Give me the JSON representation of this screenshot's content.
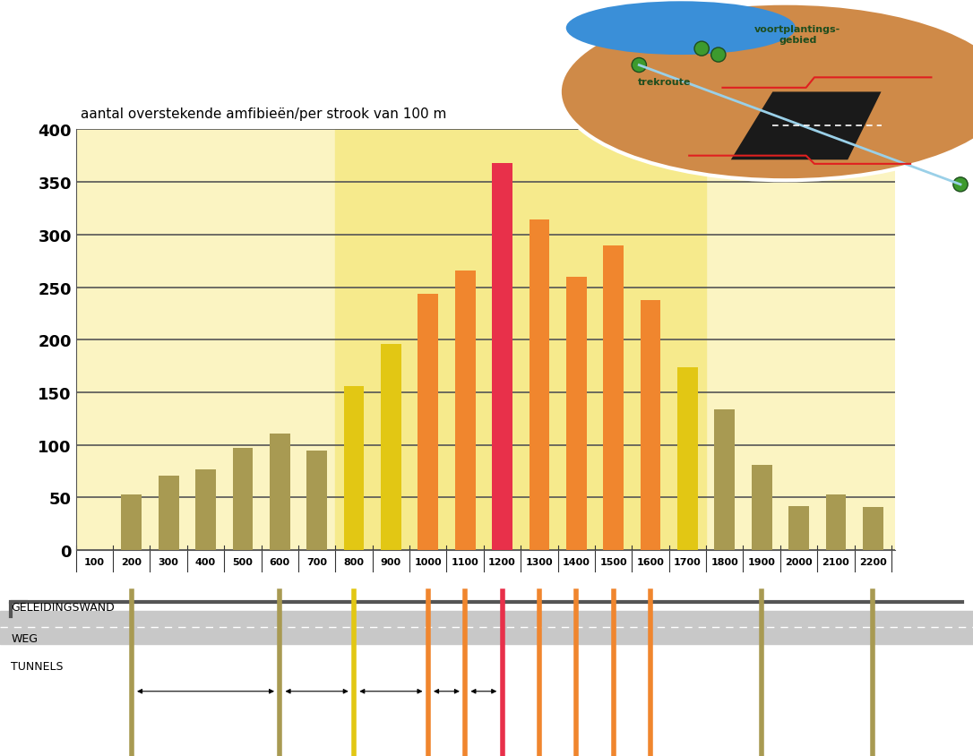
{
  "chart_data": {
    "type": "bar",
    "y_label": "aantal overstekende amfibieën/per strook van 100 m",
    "categories": [
      "100",
      "200",
      "300",
      "400",
      "500",
      "600",
      "700",
      "800",
      "900",
      "1000",
      "1100",
      "1200",
      "1300",
      "1400",
      "1500",
      "1600",
      "1700",
      "1800",
      "1900",
      "2000",
      "2100",
      "2200"
    ],
    "values": [
      null,
      53,
      71,
      77,
      97,
      111,
      95,
      156,
      196,
      244,
      266,
      368,
      314,
      260,
      290,
      238,
      174,
      134,
      81,
      42,
      53,
      41
    ],
    "colors": [
      "#a89a52",
      "#a89a52",
      "#a89a52",
      "#a89a52",
      "#a89a52",
      "#a89a52",
      "#a89a52",
      "#e2c714",
      "#e2c714",
      "#f0862e",
      "#f0862e",
      "#e8304a",
      "#f0862e",
      "#f0862e",
      "#f0862e",
      "#f0862e",
      "#e2c714",
      "#a89a52",
      "#a89a52",
      "#a89a52",
      "#a89a52",
      "#a89a52"
    ],
    "ylim": [
      0,
      400
    ],
    "yticks": [
      0,
      50,
      100,
      150,
      200,
      250,
      300,
      350,
      400
    ],
    "grid": true
  },
  "road_diagram": {
    "labels": {
      "wall": "GELEIDINGSWAND",
      "road": "WEG",
      "tunnels": "TUNNELS"
    },
    "tunnel_positions": [
      "200",
      "600",
      "800",
      "1000",
      "1100",
      "1200",
      "1300",
      "1400",
      "1500",
      "1600",
      "1900",
      "2200"
    ],
    "arrows": [
      [
        "200",
        "600"
      ],
      [
        "600",
        "800"
      ],
      [
        "800",
        "1000"
      ],
      [
        "1000",
        "1100"
      ],
      [
        "1100",
        "1200"
      ]
    ]
  },
  "inset": {
    "breeding_area": "voortplantings-\ngebied",
    "route": "trekroute"
  }
}
